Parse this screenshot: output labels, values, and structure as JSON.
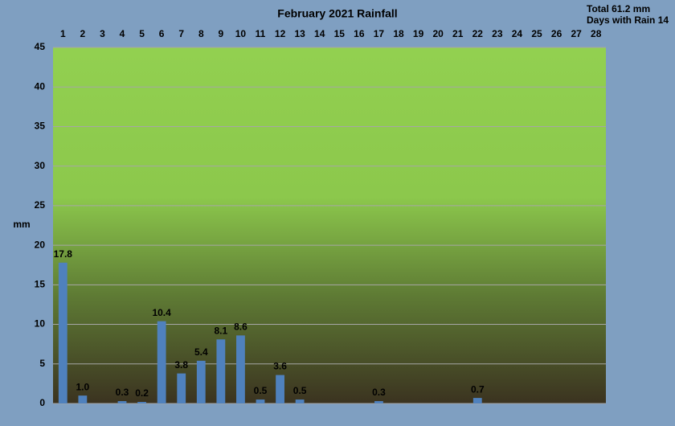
{
  "chart_data": {
    "type": "bar",
    "title": "February 2021 Rainfall",
    "annotations": [
      "Total 61.2 mm",
      "Days with Rain 14"
    ],
    "y_label": "mm",
    "categories": [
      "1",
      "2",
      "3",
      "4",
      "5",
      "6",
      "7",
      "8",
      "9",
      "10",
      "11",
      "12",
      "13",
      "14",
      "15",
      "16",
      "17",
      "18",
      "19",
      "20",
      "21",
      "22",
      "23",
      "24",
      "25",
      "26",
      "27",
      "28"
    ],
    "values": [
      17.8,
      1,
      0,
      0.3,
      0.2,
      10.4,
      3.8,
      5.4,
      8.1,
      8.6,
      0.5,
      3.6,
      0.5,
      0,
      0,
      0,
      0.3,
      0,
      0,
      0,
      0,
      0.7,
      0,
      0,
      0,
      0,
      0,
      0
    ],
    "value_labels": [
      "17.8",
      "1.0",
      null,
      "0.3",
      "0.2",
      "10.4",
      "3.8",
      "5.4",
      "8.1",
      "8.6",
      "0.5",
      "3.6",
      "0.5",
      null,
      null,
      null,
      "0.3",
      null,
      null,
      null,
      null,
      "0.7",
      null,
      null,
      null,
      null,
      null,
      null
    ],
    "color": "#4f81bd",
    "ylim": [
      0,
      45
    ],
    "yticks": [
      0,
      5,
      10,
      15,
      20,
      25,
      30,
      35,
      40,
      45
    ],
    "grid": true
  }
}
